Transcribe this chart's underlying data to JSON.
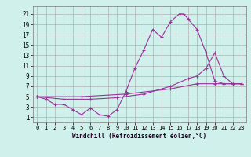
{
  "xlabel": "Windchill (Refroidissement éolien,°C)",
  "bg_color": "#cff0eb",
  "grid_color": "#b0b0b0",
  "line_color": "#993399",
  "xlim": [
    -0.5,
    23.5
  ],
  "ylim": [
    0,
    22.5
  ],
  "xticks": [
    0,
    1,
    2,
    3,
    4,
    5,
    6,
    7,
    8,
    9,
    10,
    11,
    12,
    13,
    14,
    15,
    16,
    17,
    18,
    19,
    20,
    21,
    22,
    23
  ],
  "yticks": [
    1,
    3,
    5,
    7,
    9,
    11,
    13,
    15,
    17,
    19,
    21
  ],
  "series": [
    [
      0,
      5,
      1,
      4.5,
      2,
      3.5,
      3,
      3.5,
      4,
      2.5,
      5,
      1.5,
      6,
      2.8,
      7,
      1.5,
      8,
      1.2,
      9,
      2.5,
      10,
      6,
      11,
      10.5,
      12,
      14,
      13,
      18,
      14,
      16.5,
      15,
      19.5,
      16,
      21,
      16.5,
      21,
      17,
      20,
      18,
      18,
      19,
      13.5,
      20,
      8,
      21,
      7.5,
      22,
      7.5,
      23,
      7.5
    ],
    [
      0,
      5,
      3,
      4.5,
      6,
      4.5,
      9,
      4.8,
      12,
      5.5,
      15,
      7,
      17,
      8.5,
      18,
      9,
      19,
      10.5,
      20,
      13.5,
      21,
      9,
      22,
      7.5,
      23,
      7.5
    ],
    [
      0,
      5,
      5,
      5,
      10,
      5.5,
      15,
      6.5,
      18,
      7.5,
      20,
      7.5,
      21,
      7.5,
      22,
      7.5,
      23,
      7.5
    ]
  ]
}
